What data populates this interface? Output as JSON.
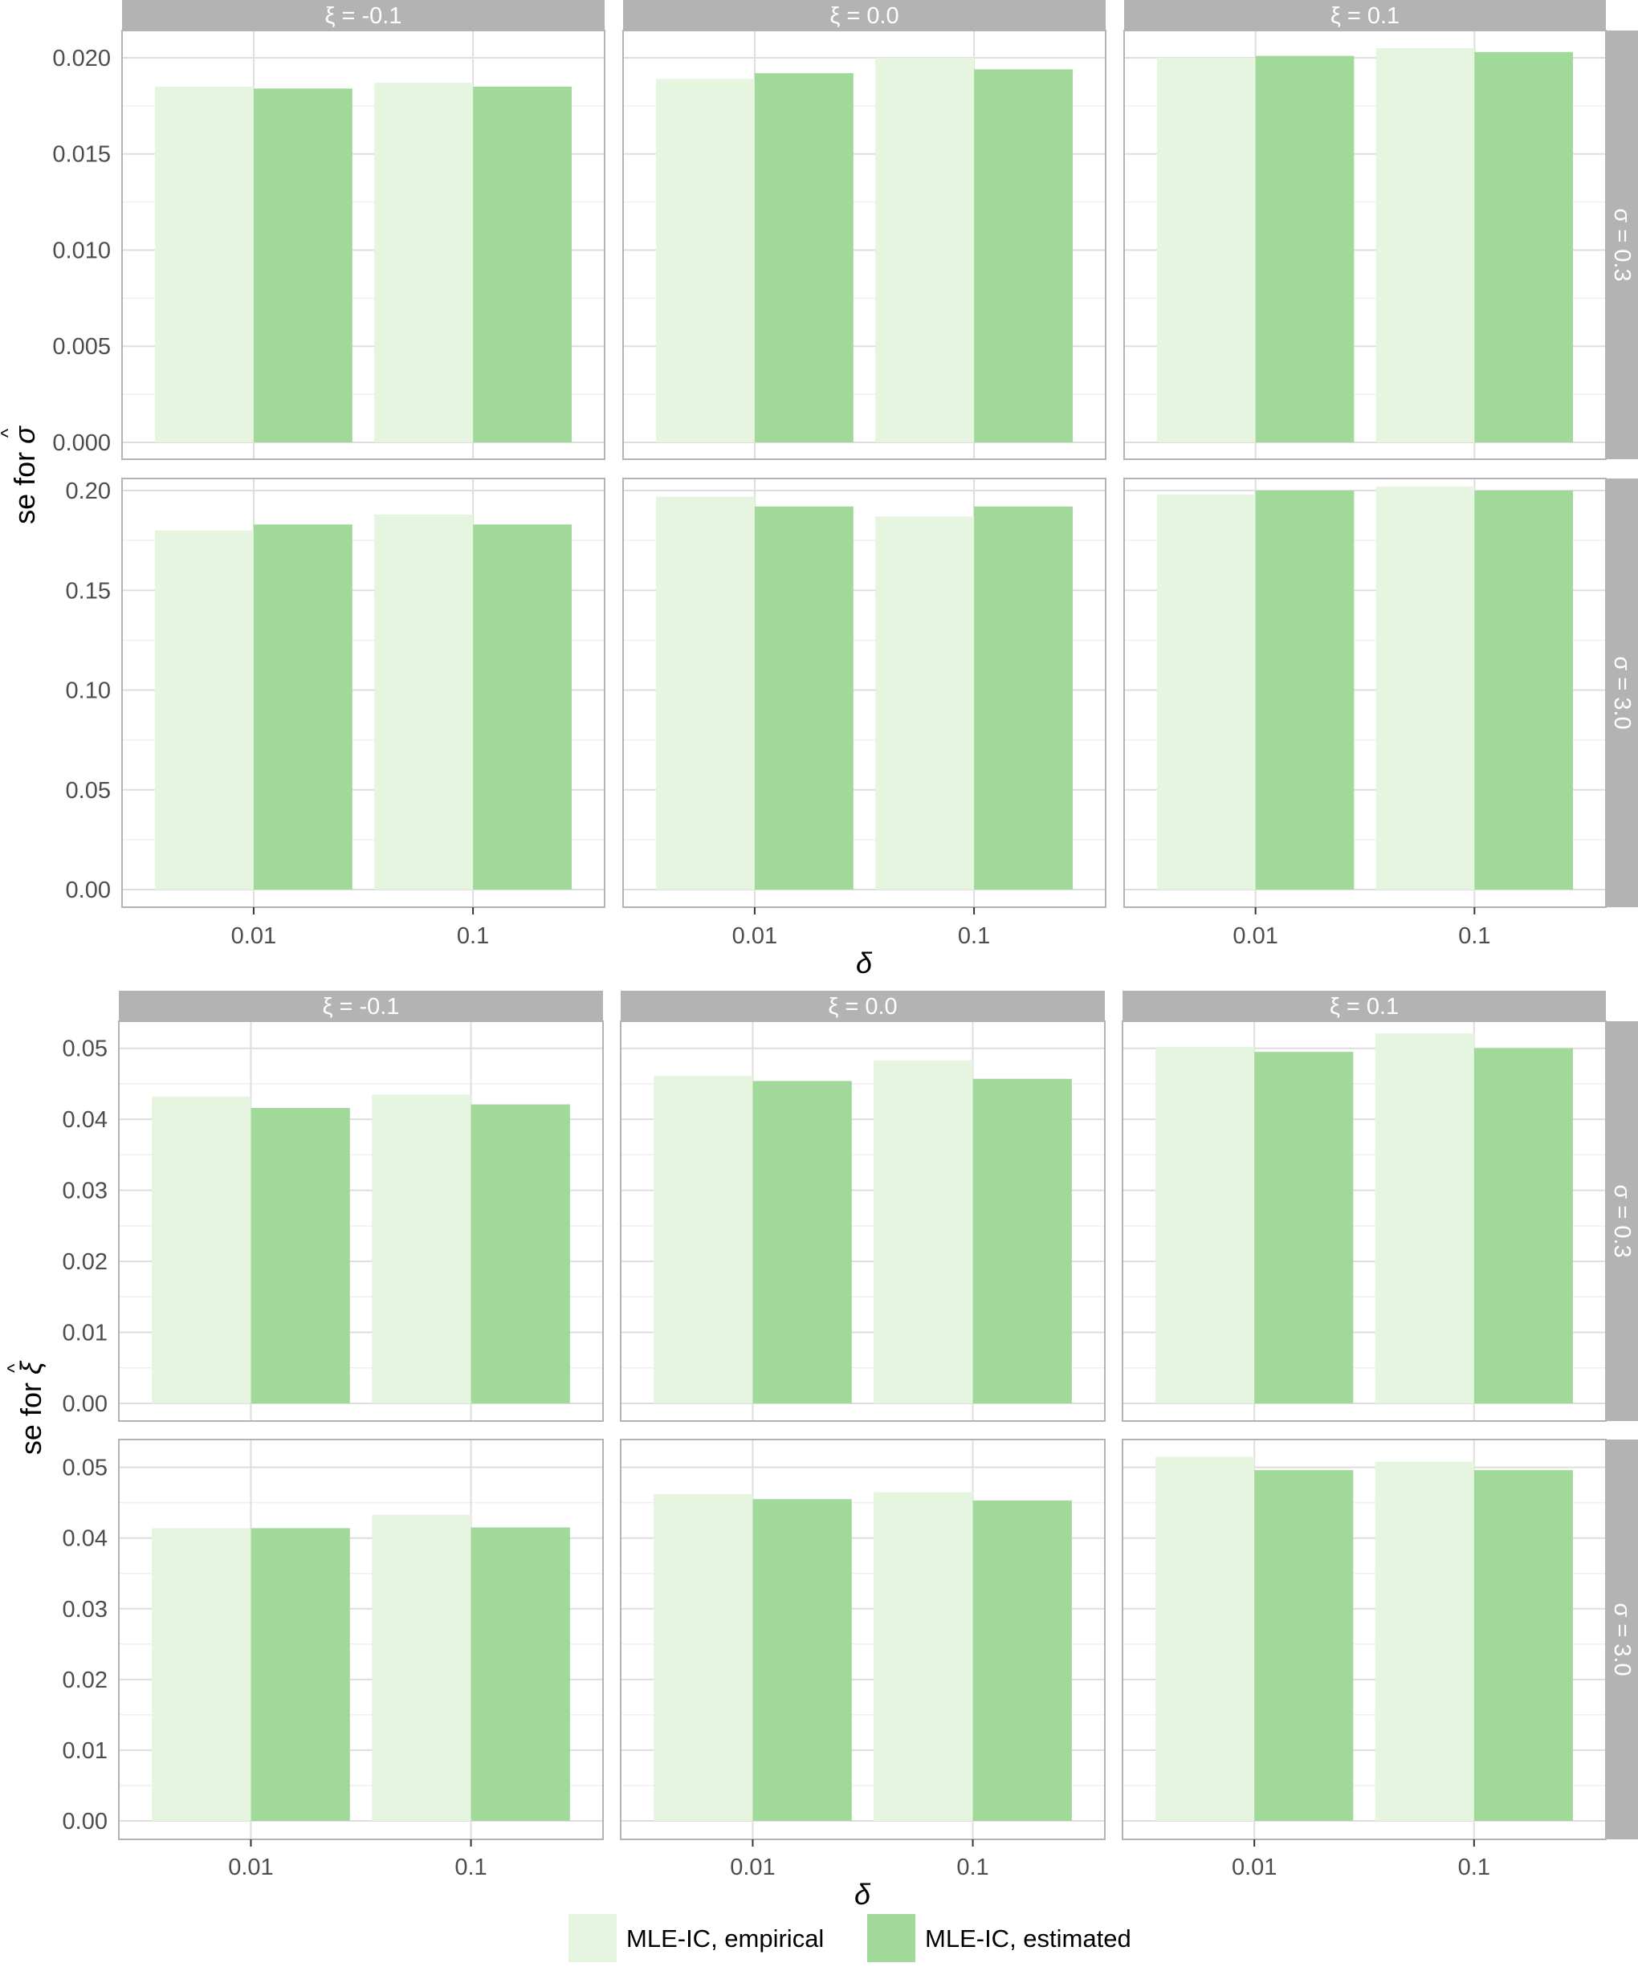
{
  "figure": {
    "x_axis_label": "δ",
    "legend": {
      "position": "bottom",
      "entries": [
        {
          "label": "MLE-IC, empirical",
          "color": "#e5f5e0"
        },
        {
          "label": "MLE-IC, estimated",
          "color": "#a1d99b"
        }
      ]
    },
    "colors": {
      "strip_bg": "#b3b3b3",
      "strip_text": "#ffffff",
      "panel_border": "#b3b3b3",
      "grid_major": "#dedede",
      "grid_minor": "#efefef",
      "tick_text": "#4d4d4d"
    }
  },
  "chart_data": [
    {
      "type": "bar",
      "ylabel_base": "se for",
      "ylabel_symbol": "σ",
      "ylabel_hat": "^",
      "facet_cols": [
        "ξ = -0.1",
        "ξ = 0.0",
        "ξ = 0.1"
      ],
      "facet_rows": [
        "σ = 0.3",
        "σ = 3.0"
      ],
      "categories": [
        "0.01",
        "0.1"
      ],
      "series_names": [
        "MLE-IC, empirical",
        "MLE-IC, estimated"
      ],
      "rows": [
        {
          "ylim": [
            0,
            0.0205
          ],
          "yticks": [
            "0.000",
            "0.005",
            "0.010",
            "0.015",
            "0.020"
          ],
          "ytick_values": [
            0,
            0.005,
            0.01,
            0.015,
            0.02
          ],
          "panels": [
            {
              "empirical": [
                0.0185,
                0.0187
              ],
              "estimated": [
                0.0184,
                0.0185
              ]
            },
            {
              "empirical": [
                0.0189,
                0.02
              ],
              "estimated": [
                0.0192,
                0.0194
              ]
            },
            {
              "empirical": [
                0.02,
                0.0205
              ],
              "estimated": [
                0.0201,
                0.0203
              ]
            }
          ]
        },
        {
          "ylim": [
            0,
            0.2
          ],
          "yticks": [
            "0.00",
            "0.05",
            "0.10",
            "0.15",
            "0.20"
          ],
          "ytick_values": [
            0,
            0.05,
            0.1,
            0.15,
            0.2
          ],
          "panels": [
            {
              "empirical": [
                0.18,
                0.188
              ],
              "estimated": [
                0.183,
                0.183
              ]
            },
            {
              "empirical": [
                0.197,
                0.187
              ],
              "estimated": [
                0.192,
                0.192
              ]
            },
            {
              "empirical": [
                0.198,
                0.202
              ],
              "estimated": [
                0.2,
                0.2
              ]
            }
          ]
        }
      ]
    },
    {
      "type": "bar",
      "ylabel_base": "se for",
      "ylabel_symbol": "ξ",
      "ylabel_hat": "^",
      "facet_cols": [
        "ξ = -0.1",
        "ξ = 0.0",
        "ξ = 0.1"
      ],
      "facet_rows": [
        "σ = 0.3",
        "σ = 3.0"
      ],
      "categories": [
        "0.01",
        "0.1"
      ],
      "series_names": [
        "MLE-IC, empirical",
        "MLE-IC, estimated"
      ],
      "rows": [
        {
          "ylim": [
            0,
            0.052
          ],
          "yticks": [
            "0.00",
            "0.01",
            "0.02",
            "0.03",
            "0.04",
            "0.05"
          ],
          "ytick_values": [
            0,
            0.01,
            0.02,
            0.03,
            0.04,
            0.05
          ],
          "panels": [
            {
              "empirical": [
                0.0432,
                0.0435
              ],
              "estimated": [
                0.0416,
                0.0421
              ]
            },
            {
              "empirical": [
                0.0461,
                0.0483
              ],
              "estimated": [
                0.0454,
                0.0457
              ]
            },
            {
              "empirical": [
                0.0502,
                0.0521
              ],
              "estimated": [
                0.0495,
                0.05
              ]
            }
          ]
        },
        {
          "ylim": [
            0,
            0.052
          ],
          "yticks": [
            "0.00",
            "0.01",
            "0.02",
            "0.03",
            "0.04",
            "0.05"
          ],
          "ytick_values": [
            0,
            0.01,
            0.02,
            0.03,
            0.04,
            0.05
          ],
          "panels": [
            {
              "empirical": [
                0.0414,
                0.0433
              ],
              "estimated": [
                0.0414,
                0.0415
              ]
            },
            {
              "empirical": [
                0.0462,
                0.0465
              ],
              "estimated": [
                0.0455,
                0.0453
              ]
            },
            {
              "empirical": [
                0.0515,
                0.0508
              ],
              "estimated": [
                0.0496,
                0.0496
              ]
            }
          ]
        }
      ]
    }
  ]
}
